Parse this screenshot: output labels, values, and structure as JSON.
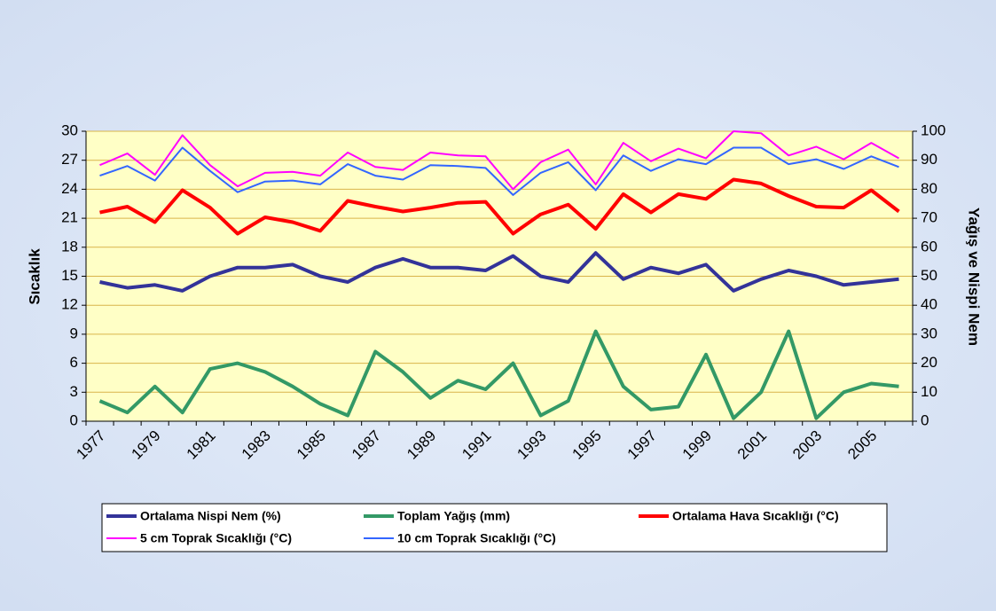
{
  "chart_data": {
    "type": "line",
    "y_label": "Sıcaklık",
    "y2_label": "Yağış ve Nispi Nem",
    "categories": [
      "1977",
      null,
      "1979",
      null,
      "1981",
      null,
      "1983",
      null,
      "1985",
      null,
      "1987",
      null,
      "1989",
      null,
      "1991",
      null,
      "1993",
      null,
      "1995",
      null,
      "1997",
      null,
      "1999",
      null,
      "2001",
      null,
      "2003",
      null,
      "2005",
      null
    ],
    "ylim": [
      0,
      30
    ],
    "yticks": [
      0,
      3,
      6,
      9,
      12,
      15,
      18,
      21,
      24,
      27,
      30
    ],
    "y2lim": [
      0,
      100
    ],
    "y2ticks": [
      0,
      10,
      20,
      30,
      40,
      50,
      60,
      70,
      80,
      90,
      100
    ],
    "grid": true,
    "legend": "bottom",
    "series": [
      {
        "name": "Ortalama Nispi Nem (%)",
        "color": "#333399",
        "axis": "y2",
        "values": [
          48,
          46,
          47,
          45,
          50,
          53,
          53,
          54,
          50,
          48,
          53,
          56,
          53,
          53,
          52,
          57,
          50,
          48,
          58,
          49,
          53,
          51,
          54,
          45,
          49,
          52,
          50,
          47,
          48,
          49
        ]
      },
      {
        "name": "Toplam Yağış (mm)",
        "color": "#339966",
        "axis": "y2",
        "values": [
          7,
          3,
          12,
          3,
          18,
          20,
          17,
          12,
          6,
          2,
          24,
          17,
          8,
          14,
          11,
          20,
          2,
          7,
          31,
          12,
          4,
          5,
          23,
          1,
          10,
          31,
          1,
          10,
          13,
          12
        ]
      },
      {
        "name": "Ortalama Hava Sıcaklığı (°C)",
        "color": "#ff0000",
        "values": [
          21.6,
          22.2,
          20.6,
          23.9,
          22.1,
          19.4,
          21.1,
          20.6,
          19.7,
          22.8,
          22.2,
          21.7,
          22.1,
          22.6,
          22.7,
          19.4,
          21.4,
          22.4,
          19.9,
          23.5,
          21.6,
          23.5,
          23.0,
          25.0,
          24.6,
          23.3,
          22.2,
          22.1,
          23.9,
          21.7
        ]
      },
      {
        "name": "5 cm Toprak Sıcaklığı (°C)",
        "color": "#ff00ff",
        "values": [
          26.5,
          27.7,
          25.5,
          29.6,
          26.5,
          24.3,
          25.7,
          25.8,
          25.4,
          27.8,
          26.3,
          26.0,
          27.8,
          27.5,
          27.4,
          24.0,
          26.8,
          28.1,
          24.5,
          28.8,
          26.9,
          28.2,
          27.2,
          30.0,
          29.8,
          27.5,
          28.4,
          27.1,
          28.8,
          27.2
        ]
      },
      {
        "name": "10 cm Toprak Sıcaklığı (°C)",
        "color": "#3366ff",
        "values": [
          25.4,
          26.4,
          24.9,
          28.3,
          25.9,
          23.7,
          24.8,
          24.9,
          24.5,
          26.6,
          25.4,
          25.0,
          26.5,
          26.4,
          26.2,
          23.4,
          25.7,
          26.8,
          23.9,
          27.5,
          25.9,
          27.1,
          26.6,
          28.3,
          28.3,
          26.6,
          27.1,
          26.1,
          27.4,
          26.3
        ]
      }
    ]
  }
}
